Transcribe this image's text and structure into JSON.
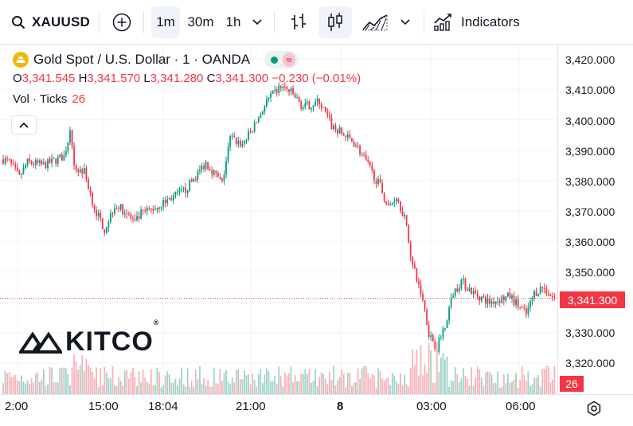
{
  "toolbar": {
    "symbol": "XAUUSD",
    "intervals": [
      "1m",
      "30m",
      "1h"
    ],
    "active_interval": "1m",
    "indicators_label": "Indicators"
  },
  "legend": {
    "title": "Gold Spot / U.S. Dollar · 1 · OANDA",
    "status_wave": "≈",
    "ohlc": {
      "o_label": "O",
      "o": "3,341.545",
      "h_label": "H",
      "h": "3,341.570",
      "l_label": "L",
      "l": "3,341.280",
      "c_label": "C",
      "c": "3,341.300",
      "change": "−0.230 (−0.01%)"
    },
    "volume_label": "Vol · Ticks",
    "volume_value": "26"
  },
  "watermark": {
    "text": "KITCO",
    "reg": "®"
  },
  "price_axis": {
    "labels": [
      "3,420.000",
      "3,410.000",
      "3,400.000",
      "3,390.000",
      "3,380.000",
      "3,370.000",
      "3,360.000",
      "3,350.000",
      "3,330.000",
      "3,320.000"
    ],
    "current_price": "3,341.300",
    "volume_badge": "26"
  },
  "time_axis": {
    "labels": [
      {
        "text": "2:00",
        "bold": false
      },
      {
        "text": "15:00",
        "bold": false
      },
      {
        "text": "18:04",
        "bold": false
      },
      {
        "text": "21:00",
        "bold": false
      },
      {
        "text": "8",
        "bold": true
      },
      {
        "text": "03:00",
        "bold": false
      },
      {
        "text": "06:00",
        "bold": false
      }
    ]
  },
  "colors": {
    "up": "#089981",
    "down": "#f23645",
    "up_vol": "#9ed4c9",
    "down_vol": "#f7b2b8",
    "grid": "#f0f3fa"
  },
  "chart_data": {
    "type": "candlestick",
    "x_labels": [
      "2:00",
      "15:00",
      "18:04",
      "21:00",
      "8",
      "03:00",
      "06:00"
    ],
    "ylim": [
      3315,
      3425
    ],
    "last_close": 3341.3,
    "path_anchors": [
      [
        0,
        3387
      ],
      [
        3,
        3386
      ],
      [
        8,
        3381
      ],
      [
        12,
        3386
      ],
      [
        20,
        3385
      ],
      [
        30,
        3388
      ],
      [
        33,
        3396
      ],
      [
        35,
        3384
      ],
      [
        40,
        3383
      ],
      [
        45,
        3371
      ],
      [
        50,
        3364
      ],
      [
        55,
        3372
      ],
      [
        60,
        3370
      ],
      [
        65,
        3366
      ],
      [
        68,
        3369
      ],
      [
        75,
        3371
      ],
      [
        82,
        3374
      ],
      [
        90,
        3377
      ],
      [
        100,
        3386
      ],
      [
        108,
        3379
      ],
      [
        112,
        3394
      ],
      [
        118,
        3392
      ],
      [
        124,
        3398
      ],
      [
        130,
        3406
      ],
      [
        137,
        3411
      ],
      [
        142,
        3409
      ],
      [
        148,
        3404
      ],
      [
        156,
        3406
      ],
      [
        162,
        3398
      ],
      [
        168,
        3395
      ],
      [
        174,
        3392
      ],
      [
        180,
        3385
      ],
      [
        186,
        3378
      ],
      [
        190,
        3371
      ],
      [
        194,
        3375
      ],
      [
        198,
        3368
      ],
      [
        202,
        3352
      ],
      [
        207,
        3341
      ],
      [
        210,
        3330
      ],
      [
        214,
        3325
      ],
      [
        218,
        3333
      ],
      [
        222,
        3343
      ],
      [
        226,
        3347
      ],
      [
        232,
        3343
      ],
      [
        240,
        3340
      ],
      [
        250,
        3342
      ],
      [
        258,
        3336
      ],
      [
        262,
        3343
      ],
      [
        266,
        3345
      ],
      [
        272,
        3341
      ]
    ]
  }
}
